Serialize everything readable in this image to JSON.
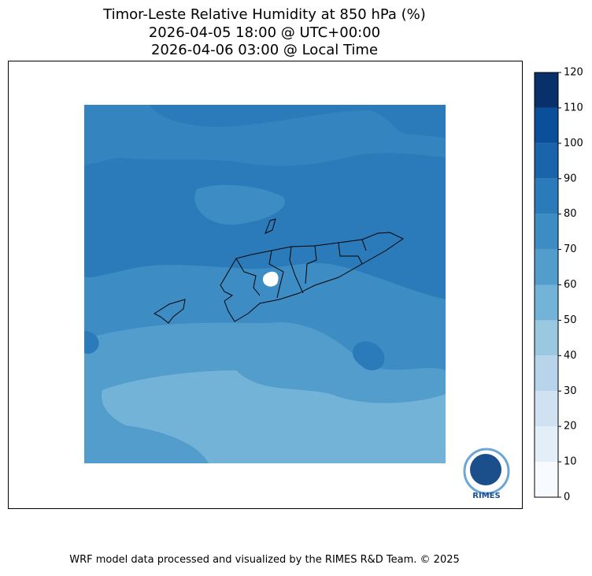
{
  "title": [
    "Timor-Leste Relative Humidity at 850 hPa (%)",
    "2026-04-05 18:00 @ UTC+00:00",
    "2026-04-06 03:00 @ Local Time"
  ],
  "colorbar": {
    "ticks": [
      0,
      10,
      20,
      30,
      40,
      50,
      60,
      70,
      80,
      90,
      100,
      110,
      120
    ],
    "colors": [
      "#f7fbff",
      "#e3eef9",
      "#d0e1f2",
      "#b7d4ea",
      "#9ac8e0",
      "#73b3d8",
      "#529dcc",
      "#3d8dc4",
      "#2b7bba",
      "#1a64ab",
      "#0b4f9b",
      "#08306b"
    ]
  },
  "logo": "RIMES",
  "footer": "WRF model data processed and visualized by the RIMES R&D Team. © 2025"
}
